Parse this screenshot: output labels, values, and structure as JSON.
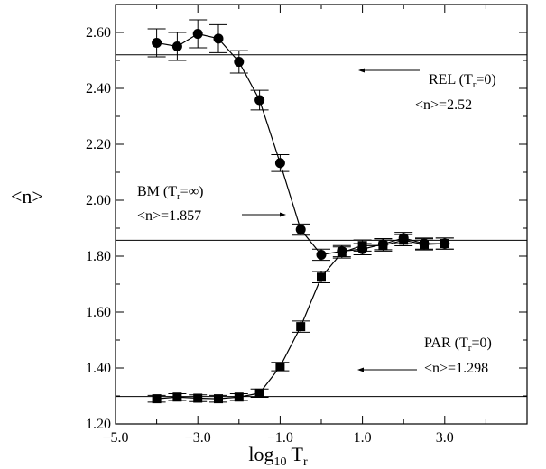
{
  "chart_data": {
    "type": "scatter",
    "title": "",
    "xlabel": {
      "base": "log",
      "base_sub": "10",
      "var": "T",
      "var_sub": "r"
    },
    "ylabel": "<n>",
    "xlim": [
      -5.0,
      5.0
    ],
    "ylim": [
      1.2,
      2.7
    ],
    "xticks": [
      -5.0,
      -3.0,
      -1.0,
      1.0,
      3.0
    ],
    "xtick_labels": [
      "−5.0",
      "−3.0",
      "−1.0",
      "1.0",
      "3.0"
    ],
    "yticks": [
      1.2,
      1.4,
      1.6,
      1.8,
      2.0,
      2.2,
      2.4,
      2.6
    ],
    "ytick_labels": [
      "1.20",
      "1.40",
      "1.60",
      "1.80",
      "2.00",
      "2.20",
      "2.40",
      "2.60"
    ],
    "grid": false,
    "reference_lines": [
      {
        "y": 2.52,
        "label": "REL (Tr=0)",
        "value_text": "<n>=2.52"
      },
      {
        "y": 1.857,
        "label": "BM (Tr=∞)",
        "value_text": "<n>=1.857"
      },
      {
        "y": 1.298,
        "label": "PAR (Tr=0)",
        "value_text": "<n>=1.298"
      }
    ],
    "series": [
      {
        "marker": "circle",
        "x": [
          -4.0,
          -3.5,
          -3.0,
          -2.5,
          -2.0,
          -1.5,
          -1.0,
          -0.5,
          0.0,
          0.5,
          1.0,
          1.5,
          2.0,
          2.5,
          3.0
        ],
        "y": [
          2.563,
          2.55,
          2.595,
          2.578,
          2.495,
          2.358,
          2.133,
          1.895,
          1.805,
          1.818,
          1.825,
          1.843,
          1.865,
          1.845,
          1.845
        ],
        "err": [
          0.05,
          0.05,
          0.05,
          0.05,
          0.04,
          0.035,
          0.03,
          0.02,
          0.02,
          0.02,
          0.02,
          0.02,
          0.02,
          0.02,
          0.02
        ]
      },
      {
        "marker": "square",
        "x": [
          -4.0,
          -3.5,
          -3.0,
          -2.5,
          -2.0,
          -1.5,
          -1.0,
          -0.5,
          0.0,
          0.5,
          1.0,
          1.5,
          2.0,
          2.5,
          3.0
        ],
        "y": [
          1.29,
          1.296,
          1.292,
          1.29,
          1.296,
          1.31,
          1.405,
          1.548,
          1.725,
          1.813,
          1.838,
          1.838,
          1.857,
          1.842,
          1.845
        ],
        "err": [
          0.012,
          0.012,
          0.012,
          0.012,
          0.012,
          0.015,
          0.015,
          0.02,
          0.02,
          0.02,
          0.02,
          0.02,
          0.02,
          0.02,
          0.02
        ]
      }
    ]
  }
}
